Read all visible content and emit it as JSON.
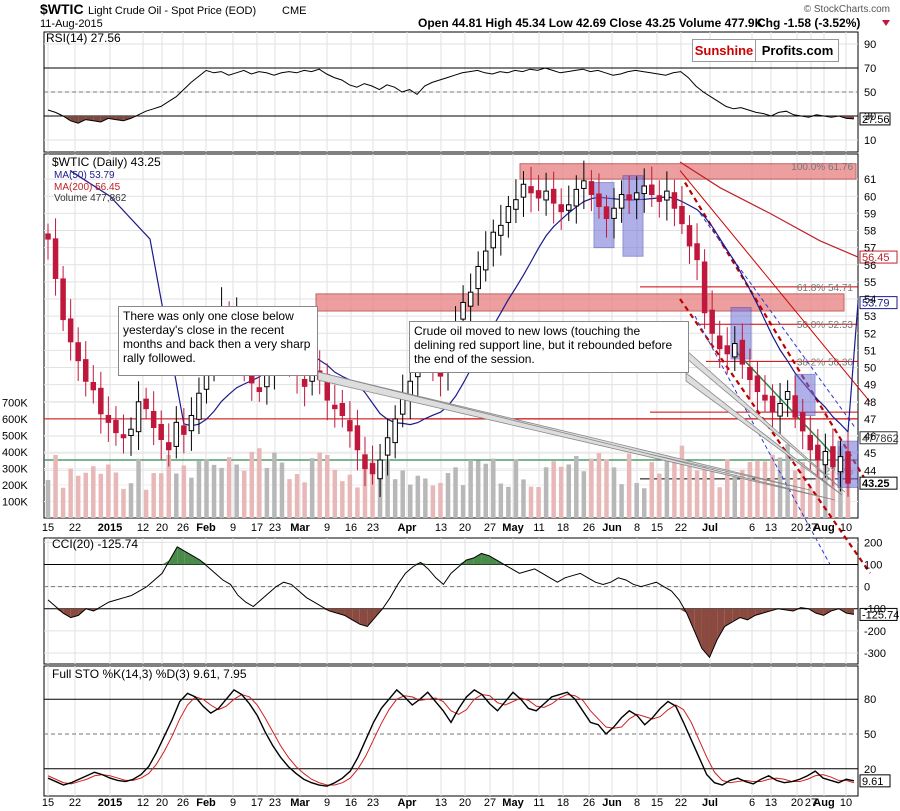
{
  "header": {
    "symbol": "$WTIC",
    "description": "Light Crude Oil - Spot Price (EOD)",
    "exchange": "CME",
    "date": "11-Aug-2015",
    "ohlc_text": "Open 44.81  High 45.34  Low 42.69  Close 43.25  Volume 477.9K",
    "chg_text": "Chg -1.58 (-3.52%)",
    "watermark": "© StockCharts.com"
  },
  "logo": {
    "part1": "Sunshine",
    "part2": "Profits.com"
  },
  "annotations": {
    "left": "There was only one close below yesterday's close in the recent months and back then a very sharp rally followed.",
    "right": "Crude oil moved to new lows (touching the delining red support line, but it rebounded before the end of the session."
  },
  "colors": {
    "up": "#000000",
    "down": "#c0183c",
    "ma50": "#1a1a8c",
    "ma200": "#c0202a",
    "zone": "#e88080",
    "vol": "#e8b8b8",
    "volUp": "#b8b8b8",
    "rect": "#7070d8"
  },
  "chart_data": [
    {
      "panel": "rsi",
      "type": "line",
      "title": "RSI(14) 27.56",
      "ylim": [
        0,
        100
      ],
      "ticks": [
        10,
        30,
        50,
        70,
        90
      ],
      "levels": [
        30,
        50,
        70
      ],
      "last_label": "27.56",
      "values": [
        35,
        33,
        30,
        26,
        24,
        27,
        26,
        25,
        28,
        27,
        26,
        28,
        31,
        34,
        36,
        38,
        42,
        46,
        52,
        58,
        63,
        68,
        66,
        67,
        64,
        66,
        68,
        65,
        67,
        66,
        64,
        66,
        67,
        66,
        68,
        67,
        69,
        65,
        62,
        60,
        56,
        54,
        57,
        55,
        52,
        56,
        54,
        50,
        52,
        48,
        55,
        58,
        60,
        62,
        64,
        66,
        67,
        68,
        66,
        65,
        67,
        66,
        68,
        67,
        69,
        68,
        70,
        68,
        66,
        67,
        68,
        69,
        67,
        68,
        66,
        64,
        65,
        67,
        68,
        67,
        66,
        65,
        64,
        66,
        67,
        62,
        55,
        50,
        46,
        42,
        38,
        36,
        37,
        35,
        33,
        32,
        30,
        33,
        34,
        31,
        30,
        29,
        31,
        30,
        29,
        30,
        28,
        27.56
      ]
    },
    {
      "panel": "price",
      "type": "candlestick",
      "series": [
        {
          "name": "MA(50) 53.79",
          "last": 53.79
        },
        {
          "name": "MA(200) 56.45",
          "last": 56.45
        },
        {
          "name": "Volume 477,862",
          "last": 477862
        }
      ],
      "title": "$WTIC (Daily) 43.25",
      "x_ticks": [
        "15",
        "22",
        "2015",
        "12",
        "20",
        "26",
        "Feb",
        "9",
        "17",
        "23",
        "Mar",
        "9",
        "16",
        "23",
        "Apr",
        "13",
        "20",
        "27",
        "May",
        "11",
        "18",
        "26",
        "Jun",
        "8",
        "15",
        "22",
        "Jul",
        "6",
        "13",
        "20",
        "27",
        "Aug",
        "10"
      ],
      "y_ticks": [
        44,
        45,
        46,
        47,
        48,
        49,
        50,
        51,
        52,
        53,
        54,
        55,
        56,
        57,
        58,
        59,
        60,
        61
      ],
      "volume_ticks": [
        "100K",
        "200K",
        "300K",
        "400K",
        "500K",
        "600K",
        "700K"
      ],
      "fib_labels": [
        "100.0% 61.76",
        "61.8% 54.71",
        "50.0% 52.53",
        "38.2% 50.36",
        "23.6%"
      ],
      "right_labels": [
        "56.45",
        "53.79",
        "477862",
        "43.25"
      ],
      "close": [
        57.5,
        55.2,
        52.8,
        51.5,
        50.4,
        49.2,
        48.7,
        47.3,
        46.8,
        46.2,
        45.9,
        46.4,
        48.0,
        47.6,
        46.5,
        45.8,
        45.2,
        46.8,
        46.1,
        47.2,
        48.5,
        50.6,
        52.2,
        53.5,
        51.8,
        52.9,
        50.4,
        49.1,
        48.6,
        50.2,
        51.8,
        52.6,
        50.2,
        49.6,
        48.9,
        50.1,
        49.3,
        48.1,
        47.6,
        47.2,
        46.3,
        45.2,
        44.1,
        43.8,
        44.6,
        45.9,
        47.0,
        48.4,
        49.2,
        50.8,
        51.2,
        50.1,
        49.5,
        51.0,
        52.6,
        53.8,
        54.4,
        55.9,
        56.8,
        57.9,
        58.3,
        59.4,
        59.8,
        60.7,
        60.2,
        59.9,
        60.3,
        59.6,
        59.1,
        59.5,
        60.4,
        60.9,
        60.1,
        59.4,
        58.7,
        59.3,
        60.1,
        59.8,
        60.2,
        60.6,
        60.1,
        59.7,
        60.3,
        59.3,
        58.4,
        57.1,
        56.3,
        53.2,
        52.0,
        51.1,
        50.8,
        51.4,
        50.2,
        49.3,
        48.6,
        48.1,
        47.4,
        47.9,
        48.6,
        47.1,
        46.3,
        45.2,
        44.6,
        45.1,
        44.2,
        44.8,
        43.25
      ],
      "ma50_last": 53.79,
      "ma200_last": 56.45
    },
    {
      "panel": "cci",
      "type": "line",
      "title": "CCI(20) -125.74",
      "ylim": [
        -350,
        220
      ],
      "ticks": [
        200,
        100,
        0,
        -100,
        -200,
        -300
      ],
      "last_label": "-125.74",
      "values": [
        -60,
        -90,
        -120,
        -140,
        -130,
        -100,
        -110,
        -90,
        -70,
        -60,
        -50,
        -40,
        -20,
        0,
        30,
        60,
        120,
        180,
        160,
        140,
        120,
        90,
        60,
        30,
        10,
        -40,
        -70,
        -90,
        -60,
        -30,
        0,
        20,
        10,
        -20,
        -50,
        -70,
        -90,
        -110,
        -120,
        -130,
        -150,
        -170,
        -180,
        -140,
        -100,
        -50,
        10,
        60,
        90,
        110,
        80,
        40,
        10,
        60,
        90,
        120,
        130,
        150,
        140,
        120,
        100,
        80,
        60,
        70,
        80,
        60,
        40,
        20,
        40,
        50,
        60,
        40,
        20,
        10,
        20,
        40,
        30,
        10,
        0,
        10,
        20,
        0,
        -20,
        -60,
        -120,
        -200,
        -280,
        -320,
        -240,
        -180,
        -160,
        -140,
        -150,
        -130,
        -120,
        -110,
        -100,
        -105,
        -110,
        -95,
        -100,
        -120,
        -130,
        -110,
        -100,
        -120,
        -125.74
      ]
    },
    {
      "panel": "sto",
      "type": "line",
      "title": "Full STO %K(14,3) %D(3) 9.61, 7.95",
      "ylim": [
        0,
        100
      ],
      "ticks": [
        20,
        50,
        80
      ],
      "levels": [
        20,
        50,
        80
      ],
      "last_label": "9.61",
      "series": [
        {
          "name": "%K",
          "values": [
            12,
            9,
            6,
            8,
            11,
            14,
            17,
            15,
            12,
            10,
            9,
            11,
            15,
            22,
            34,
            48,
            62,
            78,
            85,
            82,
            74,
            68,
            72,
            80,
            88,
            84,
            76,
            66,
            52,
            40,
            30,
            22,
            16,
            11,
            8,
            6,
            5,
            8,
            12,
            18,
            30,
            45,
            60,
            72,
            80,
            88,
            82,
            75,
            80,
            86,
            78,
            70,
            60,
            72,
            82,
            88,
            84,
            76,
            70,
            78,
            86,
            80,
            72,
            70,
            76,
            82,
            84,
            86,
            80,
            70,
            60,
            58,
            50,
            56,
            64,
            70,
            66,
            58,
            64,
            72,
            78,
            74,
            60,
            45,
            30,
            15,
            8,
            6,
            10,
            12,
            9,
            7,
            11,
            14,
            10,
            8,
            9,
            11,
            14,
            18,
            12,
            10,
            8,
            11,
            9.61
          ]
        },
        {
          "name": "%D",
          "values": [
            14,
            11,
            8,
            7,
            9,
            11,
            14,
            15,
            14,
            12,
            10,
            10,
            12,
            16,
            24,
            35,
            48,
            63,
            75,
            82,
            80,
            75,
            71,
            74,
            80,
            84,
            82,
            75,
            64,
            52,
            40,
            30,
            22,
            16,
            11,
            8,
            6,
            6,
            8,
            12,
            20,
            31,
            45,
            59,
            71,
            80,
            83,
            82,
            79,
            80,
            81,
            78,
            70,
            67,
            71,
            80,
            84,
            83,
            77,
            75,
            78,
            81,
            79,
            74,
            73,
            76,
            81,
            84,
            83,
            79,
            70,
            63,
            56,
            55,
            56,
            63,
            67,
            65,
            63,
            65,
            71,
            75,
            71,
            60,
            45,
            30,
            17,
            10,
            8,
            9,
            10,
            9,
            9,
            11,
            12,
            11,
            9,
            9,
            11,
            14,
            15,
            13,
            10,
            10,
            7.95
          ]
        }
      ]
    }
  ]
}
